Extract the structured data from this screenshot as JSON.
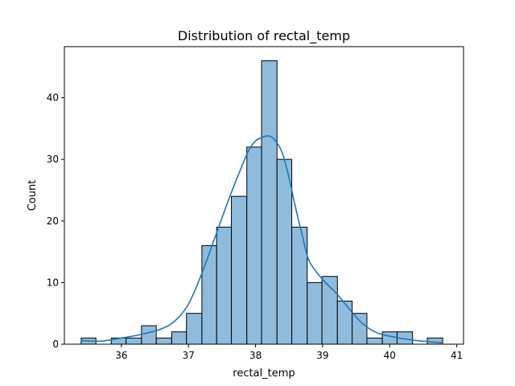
{
  "chart_data": {
    "type": "bar",
    "title": "Distribution of rectal_temp",
    "xlabel": "rectal_temp",
    "ylabel": "Count",
    "xlim": [
      35.15,
      41.1
    ],
    "ylim": [
      0,
      48.3
    ],
    "xticks": [
      36,
      37,
      38,
      39,
      40,
      41
    ],
    "yticks": [
      0,
      10,
      20,
      30,
      40
    ],
    "grid": false,
    "bar_color": "#8fbcdd",
    "line_color": "#1f77b4",
    "bin_start": 35.4,
    "bin_width": 0.2244,
    "bins": [
      {
        "x0": 35.4,
        "x1": 35.62,
        "count": 1
      },
      {
        "x0": 35.62,
        "x1": 35.85,
        "count": 0
      },
      {
        "x0": 35.85,
        "x1": 36.07,
        "count": 1
      },
      {
        "x0": 36.07,
        "x1": 36.3,
        "count": 1
      },
      {
        "x0": 36.3,
        "x1": 36.52,
        "count": 3
      },
      {
        "x0": 36.52,
        "x1": 36.75,
        "count": 1
      },
      {
        "x0": 36.75,
        "x1": 36.97,
        "count": 2
      },
      {
        "x0": 36.97,
        "x1": 37.2,
        "count": 5
      },
      {
        "x0": 37.2,
        "x1": 37.42,
        "count": 16
      },
      {
        "x0": 37.42,
        "x1": 37.64,
        "count": 19
      },
      {
        "x0": 37.64,
        "x1": 37.87,
        "count": 24
      },
      {
        "x0": 37.87,
        "x1": 38.09,
        "count": 32
      },
      {
        "x0": 38.09,
        "x1": 38.32,
        "count": 46
      },
      {
        "x0": 38.32,
        "x1": 38.54,
        "count": 30
      },
      {
        "x0": 38.54,
        "x1": 38.77,
        "count": 19
      },
      {
        "x0": 38.77,
        "x1": 38.99,
        "count": 10
      },
      {
        "x0": 38.99,
        "x1": 39.22,
        "count": 11
      },
      {
        "x0": 39.22,
        "x1": 39.44,
        "count": 7
      },
      {
        "x0": 39.44,
        "x1": 39.66,
        "count": 5
      },
      {
        "x0": 39.66,
        "x1": 39.89,
        "count": 1
      },
      {
        "x0": 39.89,
        "x1": 40.11,
        "count": 2
      },
      {
        "x0": 40.11,
        "x1": 40.34,
        "count": 2
      },
      {
        "x0": 40.34,
        "x1": 40.56,
        "count": 0
      },
      {
        "x0": 40.56,
        "x1": 40.79,
        "count": 1
      }
    ],
    "kde": {
      "x": [
        35.4,
        35.7,
        36.0,
        36.3,
        36.6,
        36.8,
        37.0,
        37.2,
        37.4,
        37.6,
        37.8,
        37.9,
        38.0,
        38.1,
        38.2,
        38.3,
        38.4,
        38.5,
        38.6,
        38.7,
        38.8,
        39.0,
        39.2,
        39.4,
        39.6,
        39.8,
        40.0,
        40.2,
        40.4,
        40.6,
        40.8
      ],
      "y": [
        0.6,
        0.5,
        1.0,
        1.6,
        2.5,
        3.8,
        6.5,
        11.5,
        17.5,
        23.5,
        29.0,
        31.5,
        33.0,
        33.6,
        33.8,
        33.0,
        31.0,
        27.0,
        22.0,
        17.5,
        13.5,
        10.5,
        8.3,
        5.7,
        3.3,
        1.9,
        1.3,
        0.9,
        0.6,
        0.4,
        0.2
      ]
    }
  }
}
